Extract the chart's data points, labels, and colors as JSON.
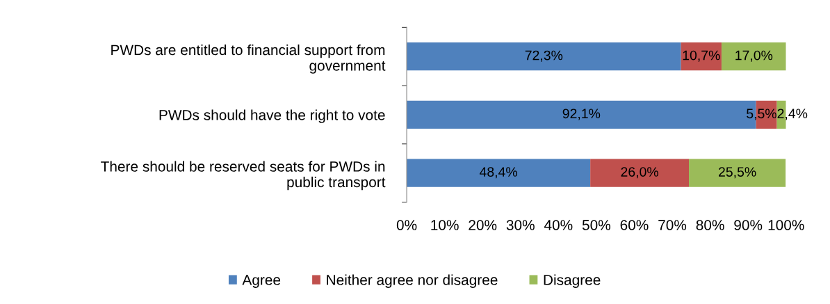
{
  "chart_data": {
    "type": "bar",
    "orientation": "horizontal",
    "stacked": true,
    "categories": [
      "PWDs are entitled to financial support from government",
      "PWDs should have the right to vote",
      "There should be reserved seats for PWDs in public transport"
    ],
    "series": [
      {
        "name": "Agree",
        "color": "#4f81bd",
        "values": [
          72.3,
          92.1,
          48.4
        ],
        "value_labels": [
          "72,3%",
          "92,1%",
          "48,4%"
        ]
      },
      {
        "name": "Neither agree nor disagree",
        "color": "#c0504d",
        "values": [
          10.7,
          5.5,
          26.0
        ],
        "value_labels": [
          "10,7%",
          "5,5%",
          "26,0%"
        ]
      },
      {
        "name": "Disagree",
        "color": "#9bbb59",
        "values": [
          17.0,
          2.4,
          25.5
        ],
        "value_labels": [
          "17,0%",
          "2,4%",
          "25,5%"
        ]
      }
    ],
    "xlim": [
      0,
      100
    ],
    "xticks": [
      {
        "value": 0,
        "label": "0%"
      },
      {
        "value": 10,
        "label": "10%"
      },
      {
        "value": 20,
        "label": "20%"
      },
      {
        "value": 30,
        "label": "30%"
      },
      {
        "value": 40,
        "label": "40%"
      },
      {
        "value": 50,
        "label": "50%"
      },
      {
        "value": 60,
        "label": "60%"
      },
      {
        "value": 70,
        "label": "70%"
      },
      {
        "value": 80,
        "label": "80%"
      },
      {
        "value": 90,
        "label": "90%"
      },
      {
        "value": 100,
        "label": "100%"
      }
    ],
    "grid": false,
    "legend": "bottom"
  }
}
